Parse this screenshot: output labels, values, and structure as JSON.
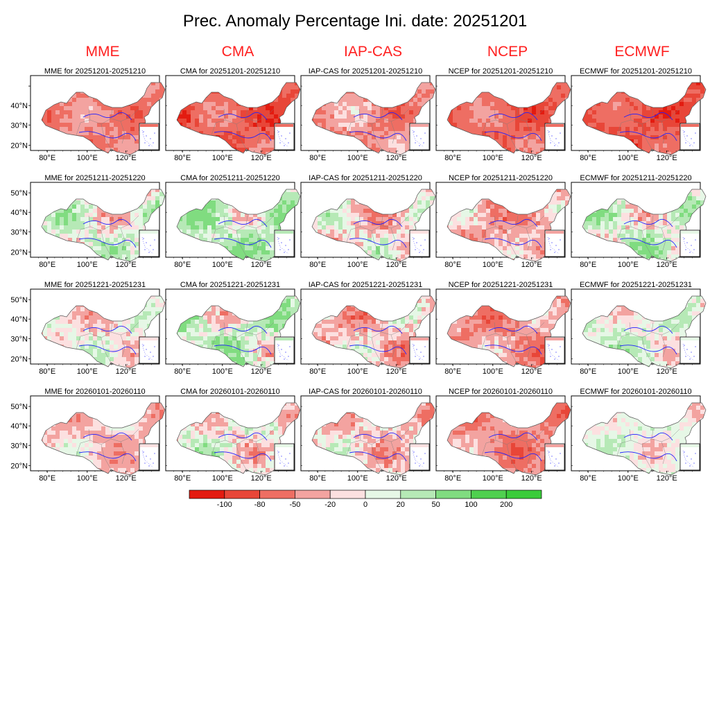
{
  "title": "Prec. Anomaly Percentage Ini. date: 20251201",
  "title_color": "#000000",
  "model_label_color": "#ff2020",
  "models": [
    "MME",
    "CMA",
    "IAP-CAS",
    "NCEP",
    "ECMWF"
  ],
  "periods": [
    "20251201-20251210",
    "20251211-20251220",
    "20251221-20251231",
    "20260101-20260110"
  ],
  "panel_title_template": "{model} for {period}",
  "map_axes": {
    "lon_ticks": [
      "80°E",
      "100°E",
      "120°E"
    ],
    "lat_ticks": [
      "50°N",
      "40°N",
      "30°N",
      "20°N"
    ],
    "lat_ticks_first_row": [
      "50°N",
      "40°N",
      "30°N",
      "20°N"
    ]
  },
  "first_row_lat_ticks": [
    "40°N",
    "30°N",
    "20°N"
  ],
  "boundary_color": "#2020ff",
  "province_color": "#7a7a7a",
  "colorbar": {
    "labels": [
      "-100",
      "-80",
      "-50",
      "-20",
      "0",
      "20",
      "50",
      "100",
      "200"
    ],
    "colors": [
      "#e31b10",
      "#e84638",
      "#ee6e63",
      "#f3a3a0",
      "#fce0e0",
      "#e6f7e6",
      "#b6e9b6",
      "#80dc80",
      "#4fd04f",
      "#3acc3a"
    ]
  },
  "anomaly_fields": [
    [
      {
        "model": "MME",
        "period": "20251201-20251210",
        "mean": -55,
        "spread": 35,
        "seed": 11
      },
      {
        "model": "CMA",
        "period": "20251201-20251210",
        "mean": -75,
        "spread": 40,
        "seed": 12
      },
      {
        "model": "IAP-CAS",
        "period": "20251201-20251210",
        "mean": -45,
        "spread": 40,
        "seed": 13
      },
      {
        "model": "NCEP",
        "period": "20251201-20251210",
        "mean": -70,
        "spread": 35,
        "seed": 14
      },
      {
        "model": "ECMWF",
        "period": "20251201-20251210",
        "mean": -80,
        "spread": 30,
        "seed": 15
      }
    ],
    [
      {
        "model": "MME",
        "period": "20251211-20251220",
        "mean": 5,
        "spread": 55,
        "seed": 21
      },
      {
        "model": "CMA",
        "period": "20251211-20251220",
        "mean": 25,
        "spread": 60,
        "seed": 22
      },
      {
        "model": "IAP-CAS",
        "period": "20251211-20251220",
        "mean": -15,
        "spread": 60,
        "seed": 23
      },
      {
        "model": "NCEP",
        "period": "20251211-20251220",
        "mean": -35,
        "spread": 50,
        "seed": 24
      },
      {
        "model": "ECMWF",
        "period": "20251211-20251220",
        "mean": 10,
        "spread": 60,
        "seed": 25
      }
    ],
    [
      {
        "model": "MME",
        "period": "20251221-20251231",
        "mean": -5,
        "spread": 45,
        "seed": 31
      },
      {
        "model": "CMA",
        "period": "20251221-20251231",
        "mean": 20,
        "spread": 65,
        "seed": 32
      },
      {
        "model": "IAP-CAS",
        "period": "20251221-20251231",
        "mean": -25,
        "spread": 55,
        "seed": 33
      },
      {
        "model": "NCEP",
        "period": "20251221-20251231",
        "mean": -40,
        "spread": 45,
        "seed": 34
      },
      {
        "model": "ECMWF",
        "period": "20251221-20251231",
        "mean": 10,
        "spread": 45,
        "seed": 35
      }
    ],
    [
      {
        "model": "MME",
        "period": "20260101-20260110",
        "mean": -20,
        "spread": 40,
        "seed": 41
      },
      {
        "model": "CMA",
        "period": "20260101-20260110",
        "mean": 0,
        "spread": 60,
        "seed": 42
      },
      {
        "model": "IAP-CAS",
        "period": "20260101-20260110",
        "mean": -15,
        "spread": 50,
        "seed": 43
      },
      {
        "model": "NCEP",
        "period": "20260101-20260110",
        "mean": -45,
        "spread": 40,
        "seed": 44
      },
      {
        "model": "ECMWF",
        "period": "20260101-20260110",
        "mean": 5,
        "spread": 35,
        "seed": 45
      }
    ]
  ]
}
